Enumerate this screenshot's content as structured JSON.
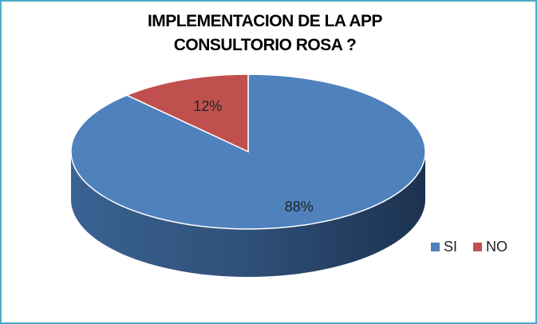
{
  "chart_data": {
    "type": "pie",
    "title": "IMPLEMENTACION DE LA APP CONSULTORIO ROSA ?",
    "categories": [
      "SI",
      "NO"
    ],
    "values": [
      88,
      12
    ],
    "value_labels": [
      "88%",
      "12%"
    ],
    "colors": [
      "#4f81bd",
      "#c0504d"
    ],
    "legend": "right"
  }
}
